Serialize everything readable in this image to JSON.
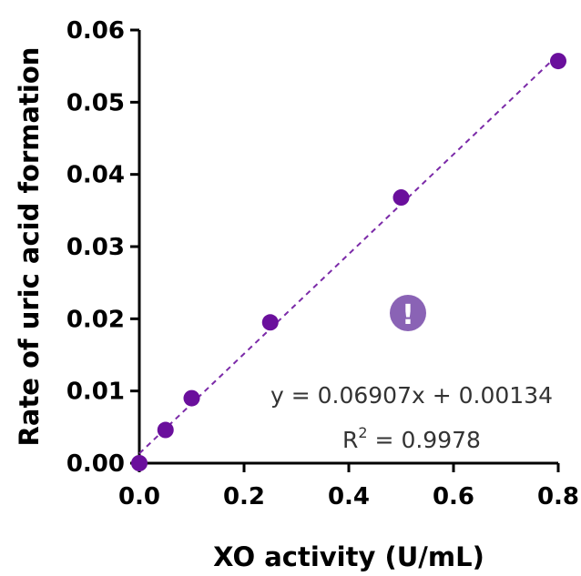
{
  "chart_data": {
    "type": "scatter",
    "title": "",
    "xlabel": "XO activity (U/mL)",
    "ylabel": "Rate of uric acid formation",
    "xlim": [
      0,
      0.8
    ],
    "ylim": [
      0,
      0.06
    ],
    "x_ticks": [
      "0.0",
      "0.2",
      "0.4",
      "0.6",
      "0.8"
    ],
    "y_ticks": [
      "0.00",
      "0.01",
      "0.02",
      "0.03",
      "0.04",
      "0.05",
      "0.06"
    ],
    "x_tick_values": [
      0,
      0.2,
      0.4,
      0.6,
      0.8
    ],
    "y_tick_values": [
      0,
      0.01,
      0.02,
      0.03,
      0.04,
      0.05,
      0.06
    ],
    "grid": false,
    "series": [
      {
        "name": "",
        "x": [
          0,
          0.05,
          0.1,
          0.25,
          0.5,
          0.8
        ],
        "y": [
          0.0,
          0.0046,
          0.009,
          0.0195,
          0.0368,
          0.0557
        ]
      }
    ],
    "fit": {
      "slope": 0.06907,
      "intercept": 0.00134,
      "x_range": [
        0,
        0.8
      ],
      "style": "dashed"
    },
    "annotation": {
      "equation": "y = 0.06907x + 0.00134",
      "r2_prefix": "R",
      "r2_sup": "2",
      "r2_suffix": " = 0.9978"
    },
    "colors": {
      "series": "#6a0f9c",
      "fit_line": "#7b2aa8",
      "axis": "#000000",
      "warning_badge": "#8a63b5"
    },
    "warning_icon": "exclamation-circle-icon",
    "warning_glyph": "!"
  }
}
